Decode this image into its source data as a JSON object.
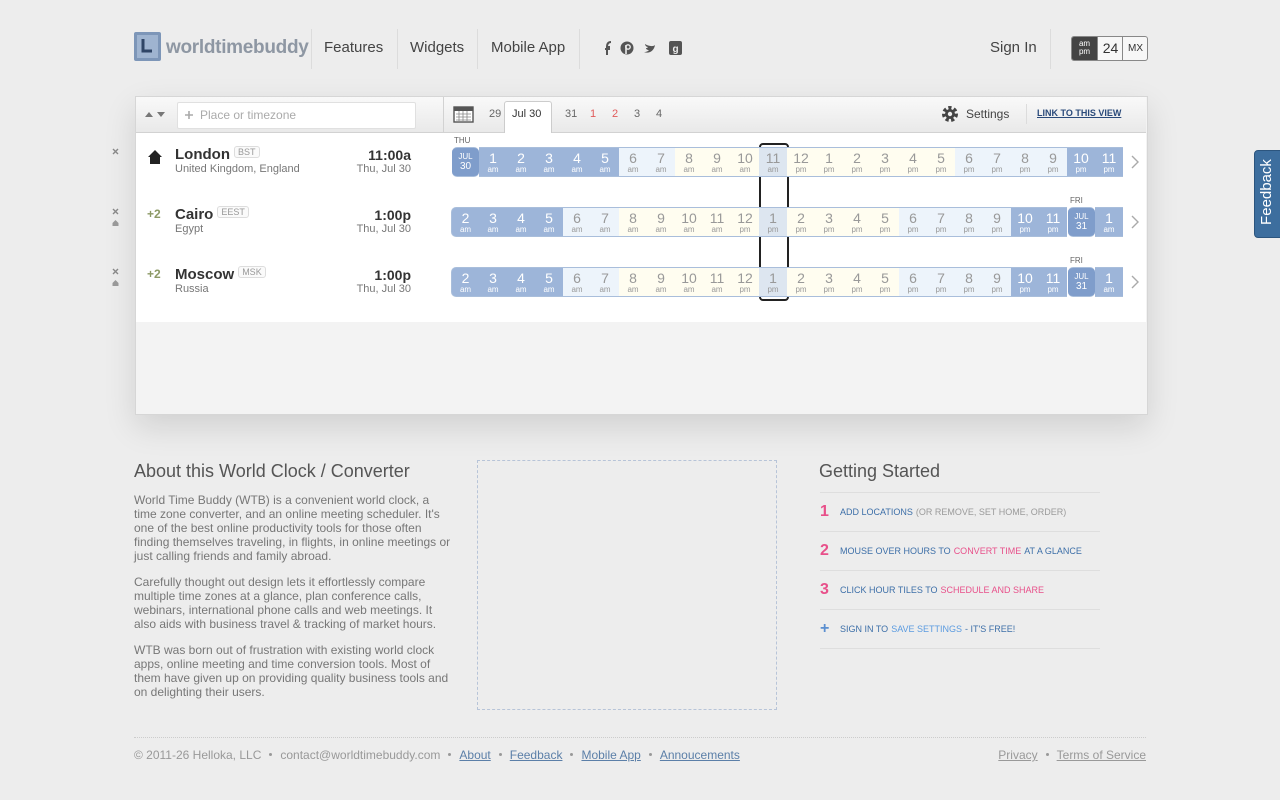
{
  "header": {
    "logo": "worldtimebuddy",
    "nav": [
      "Features",
      "Widgets",
      "Mobile App"
    ],
    "sign_in": "Sign In",
    "format": {
      "ampm_top": "am",
      "ampm_bottom": "pm",
      "h24": "24",
      "mx": "MX"
    }
  },
  "toolbar": {
    "placeholder": "Place or timezone",
    "dates": [
      {
        "text": "29",
        "color": "#666666"
      },
      {
        "text": "Jul 30",
        "color": "#333333"
      },
      {
        "text": "31",
        "color": "#666666"
      },
      {
        "text": "1",
        "color": "#e05a5a"
      },
      {
        "text": "2",
        "color": "#e05a5a"
      },
      {
        "text": "3",
        "color": "#666666"
      },
      {
        "text": "4",
        "color": "#666666"
      }
    ],
    "settings": "Settings",
    "link": "LINK TO THIS VIEW"
  },
  "rows": [
    {
      "name": "London",
      "abbr": "BST",
      "region": "United Kingdom, England",
      "time": "11:00a",
      "date": "Thu, Jul 30",
      "tiles": [
        {
          "label": "THU",
          "month": "JUL",
          "day": "30"
        },
        [
          "1",
          "am"
        ],
        [
          "2",
          "am"
        ],
        [
          "3",
          "am"
        ],
        [
          "4",
          "am"
        ],
        [
          "5",
          "am"
        ],
        [
          "6",
          "am"
        ],
        [
          "7",
          "am"
        ],
        [
          "8",
          "am"
        ],
        [
          "9",
          "am"
        ],
        [
          "10",
          "am"
        ],
        [
          "11",
          "am"
        ],
        [
          "12",
          "pm"
        ],
        [
          "1",
          "pm"
        ],
        [
          "2",
          "pm"
        ],
        [
          "3",
          "pm"
        ],
        [
          "4",
          "pm"
        ],
        [
          "5",
          "pm"
        ],
        [
          "6",
          "pm"
        ],
        [
          "7",
          "pm"
        ],
        [
          "8",
          "pm"
        ],
        [
          "9",
          "pm"
        ],
        [
          "10",
          "pm"
        ],
        [
          "11",
          "pm"
        ]
      ]
    },
    {
      "offset": "+2",
      "name": "Cairo",
      "abbr": "EEST",
      "region": "Egypt",
      "time": "1:00p",
      "date": "Thu, Jul 30",
      "tiles": [
        [
          "2",
          "am"
        ],
        [
          "3",
          "am"
        ],
        [
          "4",
          "am"
        ],
        [
          "5",
          "am"
        ],
        [
          "6",
          "am"
        ],
        [
          "7",
          "am"
        ],
        [
          "8",
          "am"
        ],
        [
          "9",
          "am"
        ],
        [
          "10",
          "am"
        ],
        [
          "11",
          "am"
        ],
        [
          "12",
          "pm"
        ],
        [
          "1",
          "pm"
        ],
        [
          "2",
          "pm"
        ],
        [
          "3",
          "pm"
        ],
        [
          "4",
          "pm"
        ],
        [
          "5",
          "pm"
        ],
        [
          "6",
          "pm"
        ],
        [
          "7",
          "pm"
        ],
        [
          "8",
          "pm"
        ],
        [
          "9",
          "pm"
        ],
        [
          "10",
          "pm"
        ],
        [
          "11",
          "pm"
        ],
        {
          "label": "FRI",
          "month": "JUL",
          "day": "31"
        },
        [
          "1",
          "am"
        ]
      ]
    },
    {
      "offset": "+2",
      "name": "Moscow",
      "abbr": "MSK",
      "region": "Russia",
      "time": "1:00p",
      "date": "Thu, Jul 30",
      "tiles": [
        [
          "2",
          "am"
        ],
        [
          "3",
          "am"
        ],
        [
          "4",
          "am"
        ],
        [
          "5",
          "am"
        ],
        [
          "6",
          "am"
        ],
        [
          "7",
          "am"
        ],
        [
          "8",
          "am"
        ],
        [
          "9",
          "am"
        ],
        [
          "10",
          "am"
        ],
        [
          "11",
          "am"
        ],
        [
          "12",
          "pm"
        ],
        [
          "1",
          "pm"
        ],
        [
          "2",
          "pm"
        ],
        [
          "3",
          "pm"
        ],
        [
          "4",
          "pm"
        ],
        [
          "5",
          "pm"
        ],
        [
          "6",
          "pm"
        ],
        [
          "7",
          "pm"
        ],
        [
          "8",
          "pm"
        ],
        [
          "9",
          "pm"
        ],
        [
          "10",
          "pm"
        ],
        [
          "11",
          "pm"
        ],
        {
          "label": "FRI",
          "month": "JUL",
          "day": "31"
        },
        [
          "1",
          "am"
        ]
      ]
    }
  ],
  "about": {
    "title": "About this World Clock / Converter",
    "paragraphs": [
      "World Time Buddy (WTB) is a convenient world clock, a time zone converter, and an online meeting scheduler. It's one of the best online productivity tools for those often finding themselves traveling, in flights, in online meetings or just calling friends and family abroad.",
      "Carefully thought out design lets it effortlessly compare multiple time zones at a glance, plan conference calls, webinars, international phone calls and web meetings. It also aids with business travel & tracking of market hours.",
      "WTB was born out of frustration with existing world clock apps, online meeting and time conversion tools. Most of them have given up on providing quality business tools and on delighting their users."
    ]
  },
  "getting_started": {
    "title": "Getting Started",
    "items": [
      {
        "num": "1",
        "parts": [
          {
            "text": "ADD LOCATIONS",
            "color": "#3d6fa8"
          },
          {
            "text": "(OR REMOVE, SET HOME, ORDER)",
            "color": "#9a9a9a"
          }
        ]
      },
      {
        "num": "2",
        "parts": [
          {
            "text": "MOUSE OVER HOURS TO",
            "color": "#3d6fa8"
          },
          {
            "text": "CONVERT TIME",
            "color": "#e8508a"
          },
          {
            "text": "AT A GLANCE",
            "color": "#3d6fa8"
          }
        ]
      },
      {
        "num": "3",
        "parts": [
          {
            "text": "CLICK HOUR TILES TO",
            "color": "#3d6fa8"
          },
          {
            "text": "SCHEDULE AND SHARE",
            "color": "#e8508a"
          }
        ]
      },
      {
        "num": "+",
        "parts": [
          {
            "text": "SIGN IN TO",
            "color": "#3d6fa8"
          },
          {
            "text": "SAVE SETTINGS",
            "color": "#5b9be0"
          },
          {
            "text": "- IT'S FREE!",
            "color": "#3d6fa8"
          }
        ]
      }
    ]
  },
  "footer": {
    "copyright": "© 2011-26 Helloka, LLC",
    "email": "contact@worldtimebuddy.com",
    "links": [
      "About",
      "Feedback",
      "Mobile App",
      "Annoucements"
    ],
    "right_links": [
      "Privacy",
      "Terms of Service"
    ]
  },
  "feedback_tab": "Feedback"
}
